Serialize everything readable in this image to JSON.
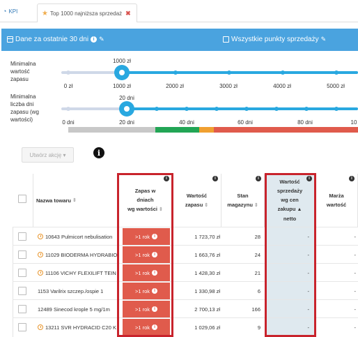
{
  "tabs": [
    {
      "label": "KPI"
    },
    {
      "label": "Top 1000 najniższa sprzedaż"
    }
  ],
  "header": {
    "period": "Dane za ostatnie 30 dni",
    "points": "Wszystkie punkty sprzedaży"
  },
  "slider1": {
    "label": [
      "Minimalna",
      "wartość",
      "zapasu"
    ],
    "value": "1000 zł",
    "ticks": [
      "0 zł",
      "1000 zł",
      "2000 zł",
      "3000 zł",
      "4000 zł",
      "5000 zł"
    ]
  },
  "slider2": {
    "label": [
      "Minimalna",
      "liczba dni",
      "zapasu (wg",
      "wartości)"
    ],
    "value": "20 dni",
    "ticks": [
      "0 dni",
      "20 dni",
      "40 dni",
      "60 dni",
      "80 dni",
      "10"
    ]
  },
  "band_colors": [
    "#c8c8c8",
    "#22a555",
    "#f0a030",
    "#e05b4c"
  ],
  "actions": {
    "create": "Utwórz akcję ▾"
  },
  "table": {
    "columns": {
      "name": "Nazwa towaru",
      "stock_days": [
        "Zapas w",
        "dniach",
        "wg wartości"
      ],
      "stock_value": [
        "Wartość",
        "zapasu"
      ],
      "stock_qty": [
        "Stan",
        "magazynu"
      ],
      "sales_value": [
        "Wartość",
        "sprzedaży",
        "wg cen",
        "zakupu",
        "netto"
      ],
      "margin": [
        "Marża",
        "wartość"
      ]
    },
    "rows": [
      {
        "clock": true,
        "name": "10643 Pulmicort nebulisation",
        "days": ">1 rok",
        "value": "1 723,70 zł",
        "qty": "28",
        "sales": "-",
        "margin": "-"
      },
      {
        "clock": true,
        "name": "11029 BIODERMA HYDRABIO",
        "days": ">1 rok",
        "value": "1 663,76 zł",
        "qty": "24",
        "sales": "-",
        "margin": "-"
      },
      {
        "clock": true,
        "name": "11106 VICHY FLEXILIFT TEIN",
        "days": ">1 rok",
        "value": "1 428,30 zł",
        "qty": "21",
        "sales": "-",
        "margin": "-"
      },
      {
        "clock": false,
        "name": "1153 Varilrix szczep./ospie 1",
        "days": ">1 rok",
        "value": "1 330,98 zł",
        "qty": "6",
        "sales": "-",
        "margin": "-"
      },
      {
        "clock": false,
        "name": "12489 Sinecod krople 5 mg/1m",
        "days": ">1 rok",
        "value": "2 700,13 zł",
        "qty": "166",
        "sales": "-",
        "margin": "-"
      },
      {
        "clock": true,
        "name": "13211 SVR HYDRACID C20 K",
        "days": ">1 rok",
        "value": "1 029,06 zł",
        "qty": "9",
        "sales": "-",
        "margin": "-"
      }
    ]
  }
}
